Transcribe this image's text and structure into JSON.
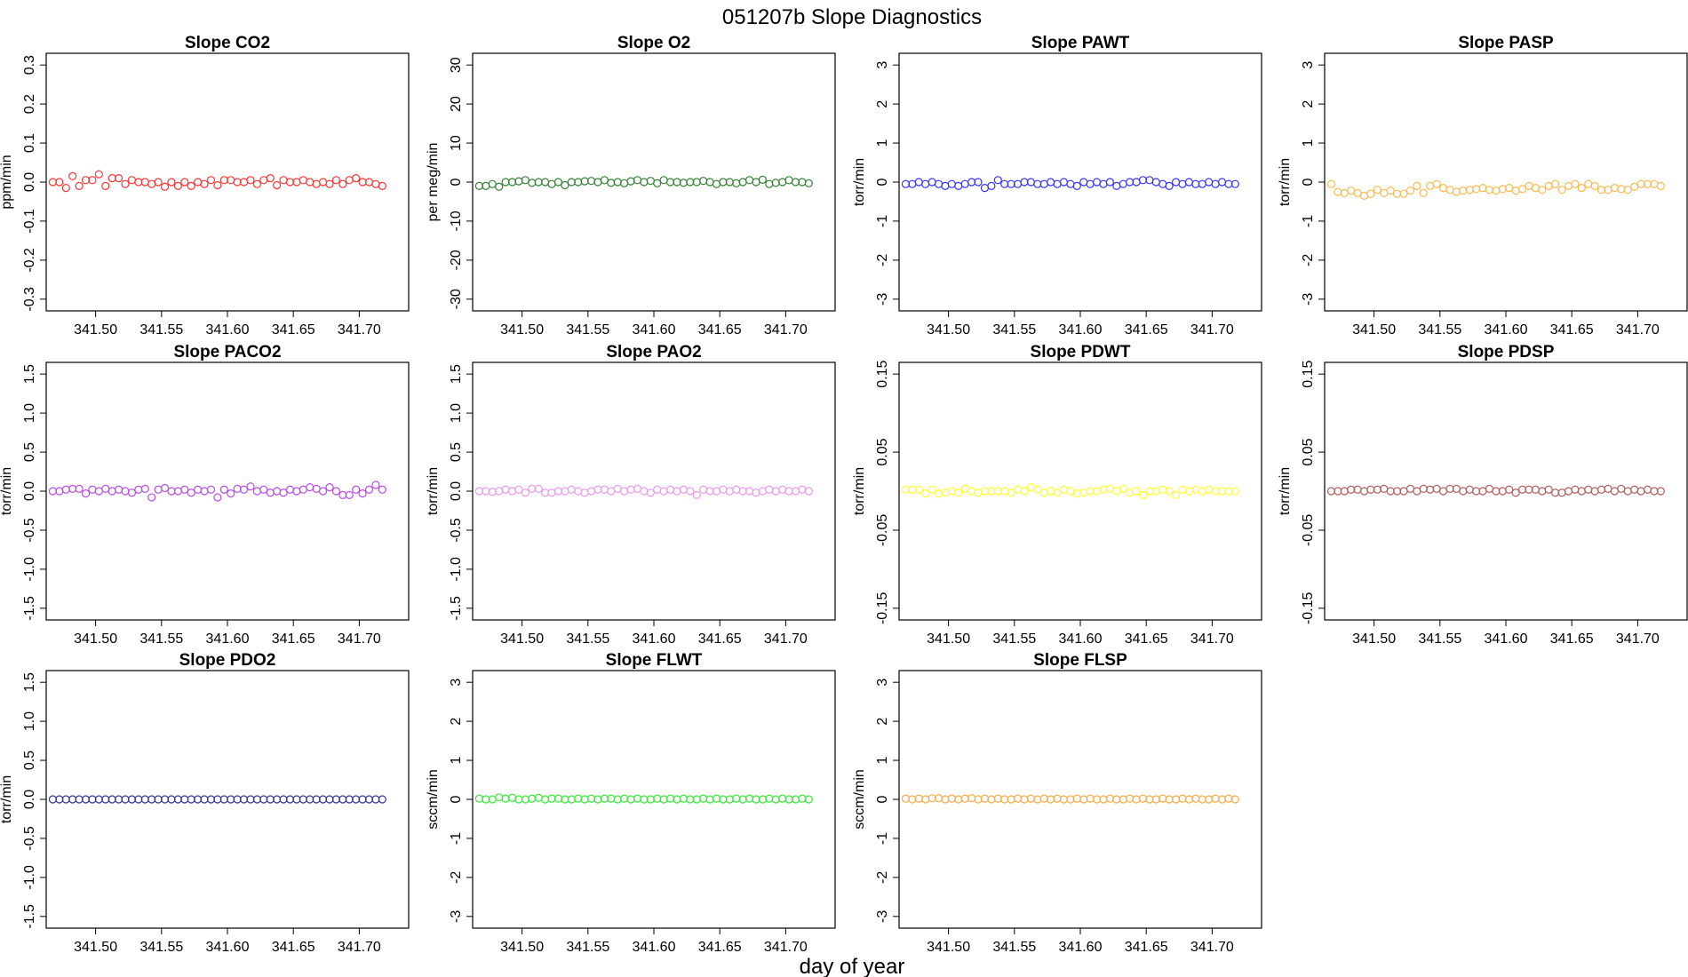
{
  "figure": {
    "title": "051207b   Slope Diagnostics",
    "xlabel": "day of year"
  },
  "chart_data": [
    {
      "type": "scatter",
      "title": "Slope CO2",
      "ylabel": "ppm/min",
      "color": "#ff3333",
      "xlim": [
        341.4625,
        341.7375
      ],
      "ylim": [
        -0.33,
        0.33
      ],
      "xticks": [
        341.5,
        341.55,
        341.6,
        341.65,
        341.7
      ],
      "yticks": [
        -0.3,
        -0.2,
        -0.1,
        0.0,
        0.1,
        0.2,
        0.3
      ],
      "ytick_labels": [
        "-0.3",
        "-0.2",
        "-0.1",
        "0.0",
        "0.1",
        "0.2",
        "0.3"
      ],
      "x_start": 341.4675,
      "x_step": 0.005,
      "values": [
        0.0,
        0.0,
        -0.015,
        0.015,
        -0.01,
        0.005,
        0.005,
        0.02,
        -0.01,
        0.01,
        0.01,
        -0.005,
        0.005,
        0.0,
        0.0,
        -0.005,
        0.0,
        -0.012,
        0.0,
        -0.01,
        0.0,
        -0.01,
        0.0,
        -0.005,
        0.005,
        -0.008,
        0.005,
        0.005,
        0.0,
        0.0,
        0.005,
        -0.005,
        0.005,
        0.01,
        -0.008,
        0.005,
        0.0,
        0.0,
        0.005,
        0.0,
        -0.005,
        0.0,
        -0.005,
        0.005,
        -0.005,
        0.005,
        0.01,
        0.0,
        0.0,
        -0.005,
        -0.01
      ]
    },
    {
      "type": "scatter",
      "title": "Slope O2",
      "ylabel": "per meg/min",
      "color": "#338033",
      "xlim": [
        341.4625,
        341.7375
      ],
      "ylim": [
        -33,
        33
      ],
      "xticks": [
        341.5,
        341.55,
        341.6,
        341.65,
        341.7
      ],
      "yticks": [
        -30,
        -20,
        -10,
        0,
        10,
        20,
        30
      ],
      "ytick_labels": [
        "-30",
        "-20",
        "-10",
        "0",
        "10",
        "20",
        "30"
      ],
      "x_start": 341.4675,
      "x_step": 0.005,
      "values": [
        -1,
        -1,
        -0.5,
        -1.2,
        0,
        0,
        0.2,
        0.5,
        -0.2,
        0,
        0,
        -0.5,
        0,
        -0.8,
        0,
        0,
        0.2,
        0.3,
        0,
        0.5,
        -0.2,
        0,
        -0.3,
        0.2,
        0.5,
        0,
        0.3,
        -0.3,
        0.5,
        0,
        0,
        -0.2,
        0,
        0,
        0.3,
        0,
        -0.5,
        0,
        0,
        -0.3,
        0,
        0.5,
        0,
        0.6,
        -0.5,
        -0.2,
        0,
        0.5,
        0,
        0,
        -0.3
      ]
    },
    {
      "type": "scatter",
      "title": "Slope PAWT",
      "ylabel": "torr/min",
      "color": "#3333ff",
      "xlim": [
        341.4625,
        341.7375
      ],
      "ylim": [
        -3.3,
        3.3
      ],
      "xticks": [
        341.5,
        341.55,
        341.6,
        341.65,
        341.7
      ],
      "yticks": [
        -3,
        -2,
        -1,
        0,
        1,
        2,
        3
      ],
      "ytick_labels": [
        "-3",
        "-2",
        "-1",
        "0",
        "1",
        "2",
        "3"
      ],
      "x_start": 341.4675,
      "x_step": 0.005,
      "values": [
        -0.05,
        -0.05,
        0,
        -0.05,
        0,
        -0.05,
        -0.1,
        -0.05,
        -0.1,
        -0.05,
        0,
        0,
        -0.15,
        -0.1,
        0.05,
        -0.05,
        -0.05,
        -0.05,
        0,
        0,
        -0.05,
        -0.05,
        0,
        -0.05,
        0,
        -0.05,
        -0.1,
        0,
        -0.05,
        0,
        -0.05,
        0,
        -0.1,
        -0.05,
        0,
        0,
        0.05,
        0.05,
        0,
        -0.05,
        -0.1,
        0,
        -0.05,
        0,
        -0.05,
        -0.05,
        0,
        -0.05,
        0,
        -0.05,
        -0.05
      ]
    },
    {
      "type": "scatter",
      "title": "Slope PASP",
      "ylabel": "torr/min",
      "color": "#ffb84d",
      "xlim": [
        341.4625,
        341.7375
      ],
      "ylim": [
        -3.3,
        3.3
      ],
      "xticks": [
        341.5,
        341.55,
        341.6,
        341.65,
        341.7
      ],
      "yticks": [
        -3,
        -2,
        -1,
        0,
        1,
        2,
        3
      ],
      "ytick_labels": [
        "-3",
        "-2",
        "-1",
        "0",
        "1",
        "2",
        "3"
      ],
      "x_start": 341.4675,
      "x_step": 0.005,
      "values": [
        -0.05,
        -0.25,
        -0.28,
        -0.22,
        -0.28,
        -0.35,
        -0.3,
        -0.2,
        -0.28,
        -0.22,
        -0.3,
        -0.3,
        -0.22,
        -0.1,
        -0.28,
        -0.1,
        -0.05,
        -0.15,
        -0.2,
        -0.25,
        -0.22,
        -0.2,
        -0.18,
        -0.15,
        -0.2,
        -0.22,
        -0.18,
        -0.15,
        -0.22,
        -0.18,
        -0.1,
        -0.15,
        -0.2,
        -0.1,
        -0.05,
        -0.2,
        -0.1,
        -0.05,
        -0.15,
        -0.05,
        -0.1,
        -0.2,
        -0.2,
        -0.15,
        -0.18,
        -0.2,
        -0.12,
        -0.05,
        -0.05,
        -0.05,
        -0.1
      ]
    },
    {
      "type": "scatter",
      "title": "Slope PACO2",
      "ylabel": "torr/min",
      "color": "#b84de6",
      "xlim": [
        341.4625,
        341.7375
      ],
      "ylim": [
        -1.65,
        1.65
      ],
      "xticks": [
        341.5,
        341.55,
        341.6,
        341.65,
        341.7
      ],
      "yticks": [
        -1.5,
        -1.0,
        -0.5,
        0.0,
        0.5,
        1.0,
        1.5
      ],
      "ytick_labels": [
        "-1.5",
        "-1.0",
        "-0.5",
        "0.0",
        "0.5",
        "1.0",
        "1.5"
      ],
      "x_start": 341.4675,
      "x_step": 0.005,
      "values": [
        0.0,
        0.0,
        0.02,
        0.03,
        0.03,
        -0.03,
        0.02,
        0.0,
        0.03,
        0.0,
        0.02,
        0.0,
        -0.02,
        0.02,
        0.03,
        -0.08,
        0.02,
        0.04,
        0.0,
        0.0,
        0.02,
        -0.02,
        0.02,
        0.0,
        0.02,
        -0.08,
        0.02,
        -0.03,
        0.03,
        0.02,
        0.06,
        0.0,
        0.02,
        -0.02,
        0.0,
        -0.02,
        0.02,
        0.0,
        0.02,
        0.05,
        0.03,
        0.0,
        0.05,
        0.0,
        -0.05,
        -0.05,
        0.02,
        -0.03,
        0.02,
        0.08,
        0.02
      ]
    },
    {
      "type": "scatter",
      "title": "Slope PAO2",
      "ylabel": "torr/min",
      "color": "#ee99ee",
      "xlim": [
        341.4625,
        341.7375
      ],
      "ylim": [
        -1.65,
        1.65
      ],
      "xticks": [
        341.5,
        341.55,
        341.6,
        341.65,
        341.7
      ],
      "yticks": [
        -1.5,
        -1.0,
        -0.5,
        0.0,
        0.5,
        1.0,
        1.5
      ],
      "ytick_labels": [
        "-1.5",
        "-1.0",
        "-0.5",
        "0.0",
        "0.5",
        "1.0",
        "1.5"
      ],
      "x_start": 341.4675,
      "x_step": 0.005,
      "values": [
        0.0,
        0.0,
        -0.01,
        0.0,
        0.02,
        0.0,
        0.02,
        -0.02,
        0.03,
        0.03,
        -0.02,
        -0.02,
        0.0,
        0.0,
        0.02,
        0.0,
        -0.02,
        0.0,
        0.02,
        0.02,
        0.0,
        0.03,
        0.0,
        0.02,
        0.03,
        0.0,
        -0.02,
        0.02,
        0.0,
        0.02,
        0.0,
        0.02,
        0.0,
        -0.05,
        0.02,
        0.0,
        0.0,
        0.02,
        0.0,
        0.02,
        0.0,
        0.0,
        -0.02,
        0.0,
        0.02,
        0.0,
        0.02,
        0.0,
        0.0,
        0.02,
        0.0
      ]
    },
    {
      "type": "scatter",
      "title": "Slope PDWT",
      "ylabel": "torr/min",
      "color": "#ffff33",
      "xlim": [
        341.4625,
        341.7375
      ],
      "ylim": [
        -0.165,
        0.165
      ],
      "xticks": [
        341.5,
        341.55,
        341.6,
        341.65,
        341.7
      ],
      "yticks": [
        -0.15,
        -0.05,
        0.05,
        0.15
      ],
      "ytick_labels": [
        "-0.15",
        "-0.05",
        "0.05",
        "0.15"
      ],
      "x_start": 341.4675,
      "x_step": 0.005,
      "values": [
        0.002,
        0.002,
        0.002,
        -0.003,
        0.002,
        -0.003,
        -0.002,
        0.0,
        -0.002,
        0.003,
        0.0,
        -0.002,
        0.0,
        0.0,
        0.0,
        0.0,
        -0.002,
        0.002,
        0.0,
        0.005,
        0.002,
        -0.002,
        0.0,
        -0.002,
        0.002,
        0.0,
        -0.003,
        -0.002,
        0.0,
        0.0,
        0.002,
        0.003,
        0.0,
        0.003,
        -0.002,
        0.0,
        -0.005,
        0.0,
        0.0,
        0.002,
        0.0,
        -0.005,
        0.002,
        0.0,
        0.002,
        0.0,
        0.002,
        0.0,
        0.0,
        0.0,
        0.0
      ]
    },
    {
      "type": "scatter",
      "title": "Slope PDSP",
      "ylabel": "torr/min",
      "color": "#b35c5c",
      "xlim": [
        341.4625,
        341.7375
      ],
      "ylim": [
        -0.165,
        0.165
      ],
      "xticks": [
        341.5,
        341.55,
        341.6,
        341.65,
        341.7
      ],
      "yticks": [
        -0.15,
        -0.05,
        0.05,
        0.15
      ],
      "ytick_labels": [
        "-0.15",
        "-0.05",
        "0.05",
        "0.15"
      ],
      "x_start": 341.4675,
      "x_step": 0.005,
      "values": [
        0.0,
        0.0,
        0.0,
        0.002,
        0.002,
        0.0,
        0.002,
        0.002,
        0.003,
        0.0,
        0.0,
        0.0,
        0.003,
        0.0,
        0.003,
        0.002,
        0.003,
        0.0,
        0.003,
        0.003,
        0.0,
        0.002,
        0.0,
        0.0,
        0.003,
        0.0,
        0.0,
        0.002,
        -0.002,
        0.002,
        0.002,
        0.002,
        0.0,
        0.002,
        -0.002,
        -0.002,
        0.0,
        0.002,
        0.0,
        0.002,
        0.0,
        0.002,
        0.003,
        0.0,
        0.003,
        0.0,
        0.002,
        0.0,
        0.002,
        0.0,
        0.0
      ]
    },
    {
      "type": "scatter",
      "title": "Slope PDO2",
      "ylabel": "torr/min",
      "color": "#333399",
      "xlim": [
        341.4625,
        341.7375
      ],
      "ylim": [
        -1.65,
        1.65
      ],
      "xticks": [
        341.5,
        341.55,
        341.6,
        341.65,
        341.7
      ],
      "yticks": [
        -1.5,
        -1.0,
        -0.5,
        0.0,
        0.5,
        1.0,
        1.5
      ],
      "ytick_labels": [
        "-1.5",
        "-1.0",
        "-0.5",
        "0.0",
        "0.5",
        "1.0",
        "1.5"
      ],
      "x_start": 341.4675,
      "x_step": 0.005,
      "values": [
        0,
        0,
        0,
        0,
        0,
        0,
        0,
        0,
        0,
        0,
        0,
        0,
        0,
        0,
        0,
        0,
        0,
        0,
        0,
        0,
        0,
        0,
        0,
        0,
        0,
        0,
        0,
        0,
        0,
        0,
        0,
        0,
        0,
        0,
        0,
        0,
        0,
        0,
        0,
        0,
        0,
        0,
        0,
        0,
        0,
        0,
        0,
        0,
        0,
        0,
        0
      ]
    },
    {
      "type": "scatter",
      "title": "Slope FLWT",
      "ylabel": "sccm/min",
      "color": "#33ee33",
      "xlim": [
        341.4625,
        341.7375
      ],
      "ylim": [
        -3.3,
        3.3
      ],
      "xticks": [
        341.5,
        341.55,
        341.6,
        341.65,
        341.7
      ],
      "yticks": [
        -3,
        -2,
        -1,
        0,
        1,
        2,
        3
      ],
      "ytick_labels": [
        "-3",
        "-2",
        "-1",
        "0",
        "1",
        "2",
        "3"
      ],
      "x_start": 341.4675,
      "x_step": 0.005,
      "values": [
        0.02,
        0.0,
        0.0,
        0.05,
        0.02,
        0.04,
        0.0,
        0.0,
        0.02,
        0.04,
        0.0,
        0.02,
        0.02,
        0.0,
        0.0,
        0.02,
        0.0,
        0.02,
        0.0,
        0.02,
        0.02,
        0.0,
        0.02,
        0.0,
        0.02,
        0.0,
        0.0,
        0.02,
        0.0,
        0.02,
        0.0,
        0.02,
        0.0,
        0.0,
        0.02,
        0.0,
        0.02,
        0.0,
        0.0,
        0.02,
        0.0,
        0.02,
        0.0,
        0.0,
        0.02,
        0.0,
        0.02,
        0.0,
        0.0,
        0.02,
        0.0
      ]
    },
    {
      "type": "scatter",
      "title": "Slope FLSP",
      "ylabel": "sccm/min",
      "color": "#ffaa44",
      "xlim": [
        341.4625,
        341.7375
      ],
      "ylim": [
        -3.3,
        3.3
      ],
      "xticks": [
        341.5,
        341.55,
        341.6,
        341.65,
        341.7
      ],
      "yticks": [
        -3,
        -2,
        -1,
        0,
        1,
        2,
        3
      ],
      "ytick_labels": [
        "-3",
        "-2",
        "-1",
        "0",
        "1",
        "2",
        "3"
      ],
      "x_start": 341.4675,
      "x_step": 0.005,
      "values": [
        0.02,
        0.0,
        0.02,
        0.0,
        0.03,
        0.03,
        0.0,
        0.02,
        0.0,
        0.02,
        0.03,
        0.0,
        0.02,
        0.0,
        0.02,
        0.0,
        0.0,
        0.02,
        0.0,
        0.02,
        0.0,
        0.02,
        0.0,
        0.02,
        0.0,
        0.0,
        0.02,
        0.0,
        0.02,
        0.0,
        0.0,
        0.02,
        0.0,
        0.0,
        0.02,
        0.0,
        0.02,
        0.0,
        0.0,
        0.02,
        0.0,
        0.0,
        0.02,
        0.0,
        0.02,
        0.0,
        0.0,
        0.02,
        0.0,
        0.02,
        0.0
      ]
    }
  ]
}
